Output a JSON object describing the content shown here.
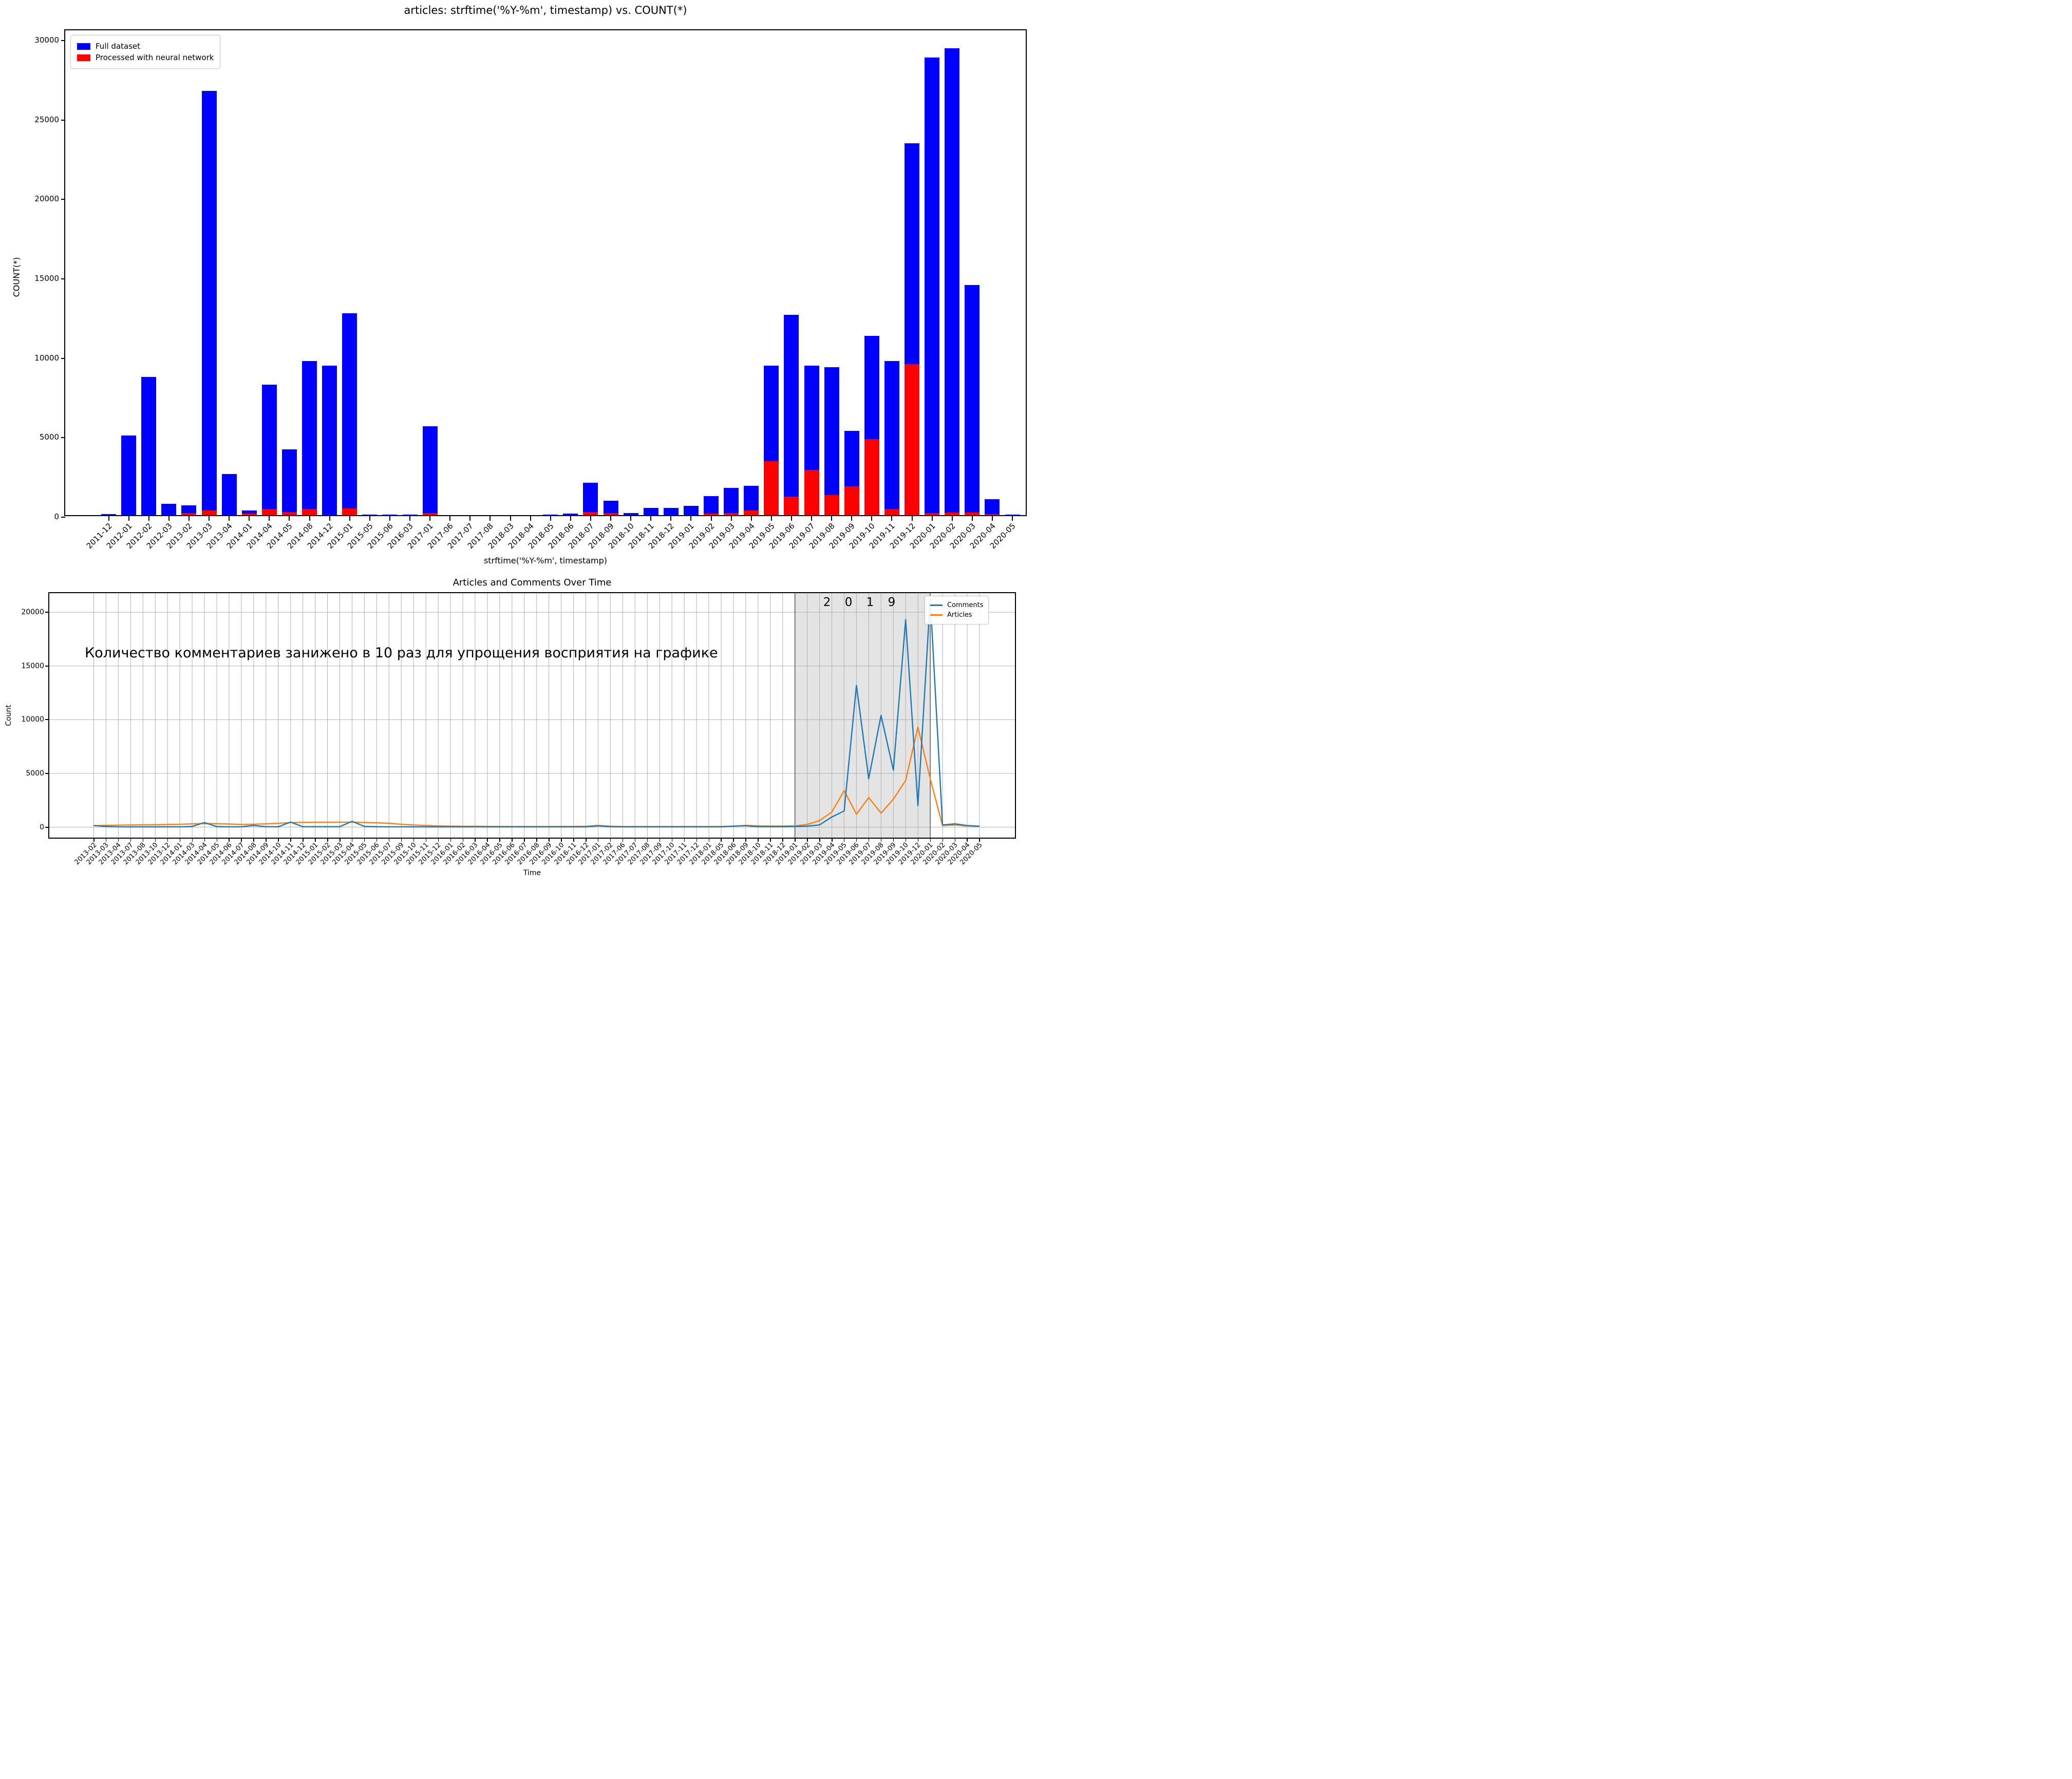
{
  "top_chart_accent_colors": {
    "full": "#0000ff",
    "processed": "#ff0000"
  },
  "bottom_chart_accent_colors": {
    "comments": "#1f77b4",
    "articles": "#ff7f0e",
    "band": "#e4e4e4"
  },
  "chart_data": [
    {
      "type": "bar",
      "title": "articles: strftime('%Y-%m', timestamp) vs. COUNT(*)",
      "xlabel": "strftime('%Y-%m', timestamp)",
      "ylabel": "COUNT(*)",
      "ylim": [
        0,
        30650
      ],
      "yticks": [
        0,
        5000,
        10000,
        15000,
        20000,
        25000,
        30000
      ],
      "grid": false,
      "legend_position": "upper-left",
      "categories": [
        "2011-12",
        "2012-01",
        "2012-02",
        "2012-03",
        "2013-02",
        "2013-03",
        "2013-04",
        "2014-01",
        "2014-04",
        "2014-05",
        "2014-08",
        "2014-12",
        "2015-01",
        "2015-05",
        "2015-06",
        "2016-03",
        "2017-01",
        "2017-06",
        "2017-07",
        "2017-08",
        "2018-03",
        "2018-04",
        "2018-05",
        "2018-06",
        "2018-07",
        "2018-09",
        "2018-10",
        "2018-11",
        "2018-12",
        "2019-01",
        "2019-02",
        "2019-03",
        "2019-04",
        "2019-05",
        "2019-06",
        "2019-07",
        "2019-08",
        "2019-09",
        "2019-10",
        "2019-11",
        "2019-12",
        "2020-01",
        "2020-02",
        "2020-03",
        "2020-04",
        "2020-05"
      ],
      "series": [
        {
          "name": "Full dataset",
          "color": "#0000ff",
          "values": [
            60,
            5000,
            8700,
            700,
            620,
            26700,
            2600,
            300,
            8200,
            4150,
            9700,
            9400,
            12700,
            40,
            40,
            40,
            5600,
            0,
            0,
            0,
            0,
            0,
            30,
            90,
            2050,
            900,
            130,
            450,
            460,
            580,
            1200,
            1700,
            1850,
            9400,
            12600,
            9400,
            9300,
            5300,
            11300,
            9700,
            23400,
            28800,
            29400,
            14500,
            1000,
            30
          ]
        },
        {
          "name": "Processed with neural network",
          "color": "#ff0000",
          "values": [
            0,
            0,
            0,
            0,
            130,
            300,
            0,
            90,
            380,
            200,
            380,
            0,
            430,
            0,
            0,
            0,
            140,
            0,
            0,
            0,
            0,
            0,
            0,
            0,
            180,
            120,
            0,
            0,
            0,
            0,
            110,
            140,
            300,
            3400,
            1150,
            2850,
            1250,
            1800,
            4800,
            400,
            9500,
            130,
            150,
            150,
            60,
            0
          ]
        }
      ]
    },
    {
      "type": "line",
      "title": "Articles and Comments Over Time",
      "xlabel": "Time",
      "ylabel": "Count",
      "ylim": [
        0,
        21900
      ],
      "yticks": [
        0,
        5000,
        10000,
        15000,
        20000
      ],
      "grid": true,
      "legend_position": "upper-right",
      "annotation": {
        "text": "Количество комментариев занижено в 10 раз для упрощения восприятия на графике"
      },
      "band": {
        "start": "2019-01",
        "end": "2020-01",
        "label": "2 0 1 9",
        "color": "#e4e4e4"
      },
      "categories": [
        "2013-02",
        "2013-03",
        "2013-04",
        "2013-07",
        "2013-08",
        "2013-10",
        "2013-12",
        "2014-01",
        "2014-03",
        "2014-04",
        "2014-05",
        "2014-06",
        "2014-07",
        "2014-08",
        "2014-09",
        "2014-10",
        "2014-11",
        "2014-12",
        "2015-01",
        "2015-02",
        "2015-03",
        "2015-04",
        "2015-05",
        "2015-06",
        "2015-07",
        "2015-09",
        "2015-10",
        "2015-11",
        "2015-12",
        "2016-01",
        "2016-02",
        "2016-03",
        "2016-04",
        "2016-05",
        "2016-06",
        "2016-07",
        "2016-08",
        "2016-09",
        "2016-10",
        "2016-11",
        "2016-12",
        "2017-01",
        "2017-02",
        "2017-06",
        "2017-07",
        "2017-08",
        "2017-09",
        "2017-10",
        "2017-11",
        "2017-12",
        "2018-01",
        "2018-05",
        "2018-06",
        "2018-09",
        "2018-10",
        "2018-11",
        "2018-12",
        "2019-01",
        "2019-02",
        "2019-03",
        "2019-04",
        "2019-05",
        "2019-06",
        "2019-07",
        "2019-08",
        "2019-09",
        "2019-10",
        "2019-12",
        "2020-01",
        "2020-02",
        "2020-03",
        "2020-04",
        "2020-05"
      ],
      "series": [
        {
          "name": "Comments",
          "color": "#1f77b4",
          "values": [
            150,
            60,
            30,
            25,
            25,
            25,
            25,
            30,
            60,
            420,
            50,
            30,
            30,
            160,
            40,
            40,
            470,
            40,
            40,
            40,
            45,
            540,
            60,
            40,
            30,
            30,
            25,
            25,
            25,
            25,
            25,
            30,
            25,
            25,
            25,
            25,
            25,
            25,
            25,
            25,
            25,
            120,
            40,
            25,
            25,
            25,
            25,
            25,
            25,
            25,
            25,
            30,
            90,
            130,
            40,
            35,
            35,
            60,
            90,
            200,
            940,
            1500,
            13200,
            4500,
            10400,
            5300,
            19300,
            2000,
            21300,
            200,
            300,
            150,
            80
          ]
        },
        {
          "name": "Articles",
          "color": "#ff7f0e",
          "values": [
            130,
            160,
            180,
            200,
            210,
            225,
            240,
            260,
            300,
            330,
            320,
            285,
            245,
            270,
            300,
            350,
            420,
            440,
            450,
            455,
            460,
            460,
            430,
            400,
            360,
            260,
            200,
            150,
            110,
            90,
            75,
            70,
            60,
            55,
            50,
            50,
            50,
            50,
            55,
            60,
            70,
            160,
            80,
            50,
            50,
            50,
            50,
            50,
            50,
            50,
            50,
            60,
            75,
            160,
            120,
            95,
            95,
            110,
            250,
            600,
            1400,
            3400,
            1200,
            2750,
            1300,
            2600,
            4350,
            9300,
            4500,
            150,
            200,
            110,
            60
          ]
        }
      ]
    }
  ]
}
